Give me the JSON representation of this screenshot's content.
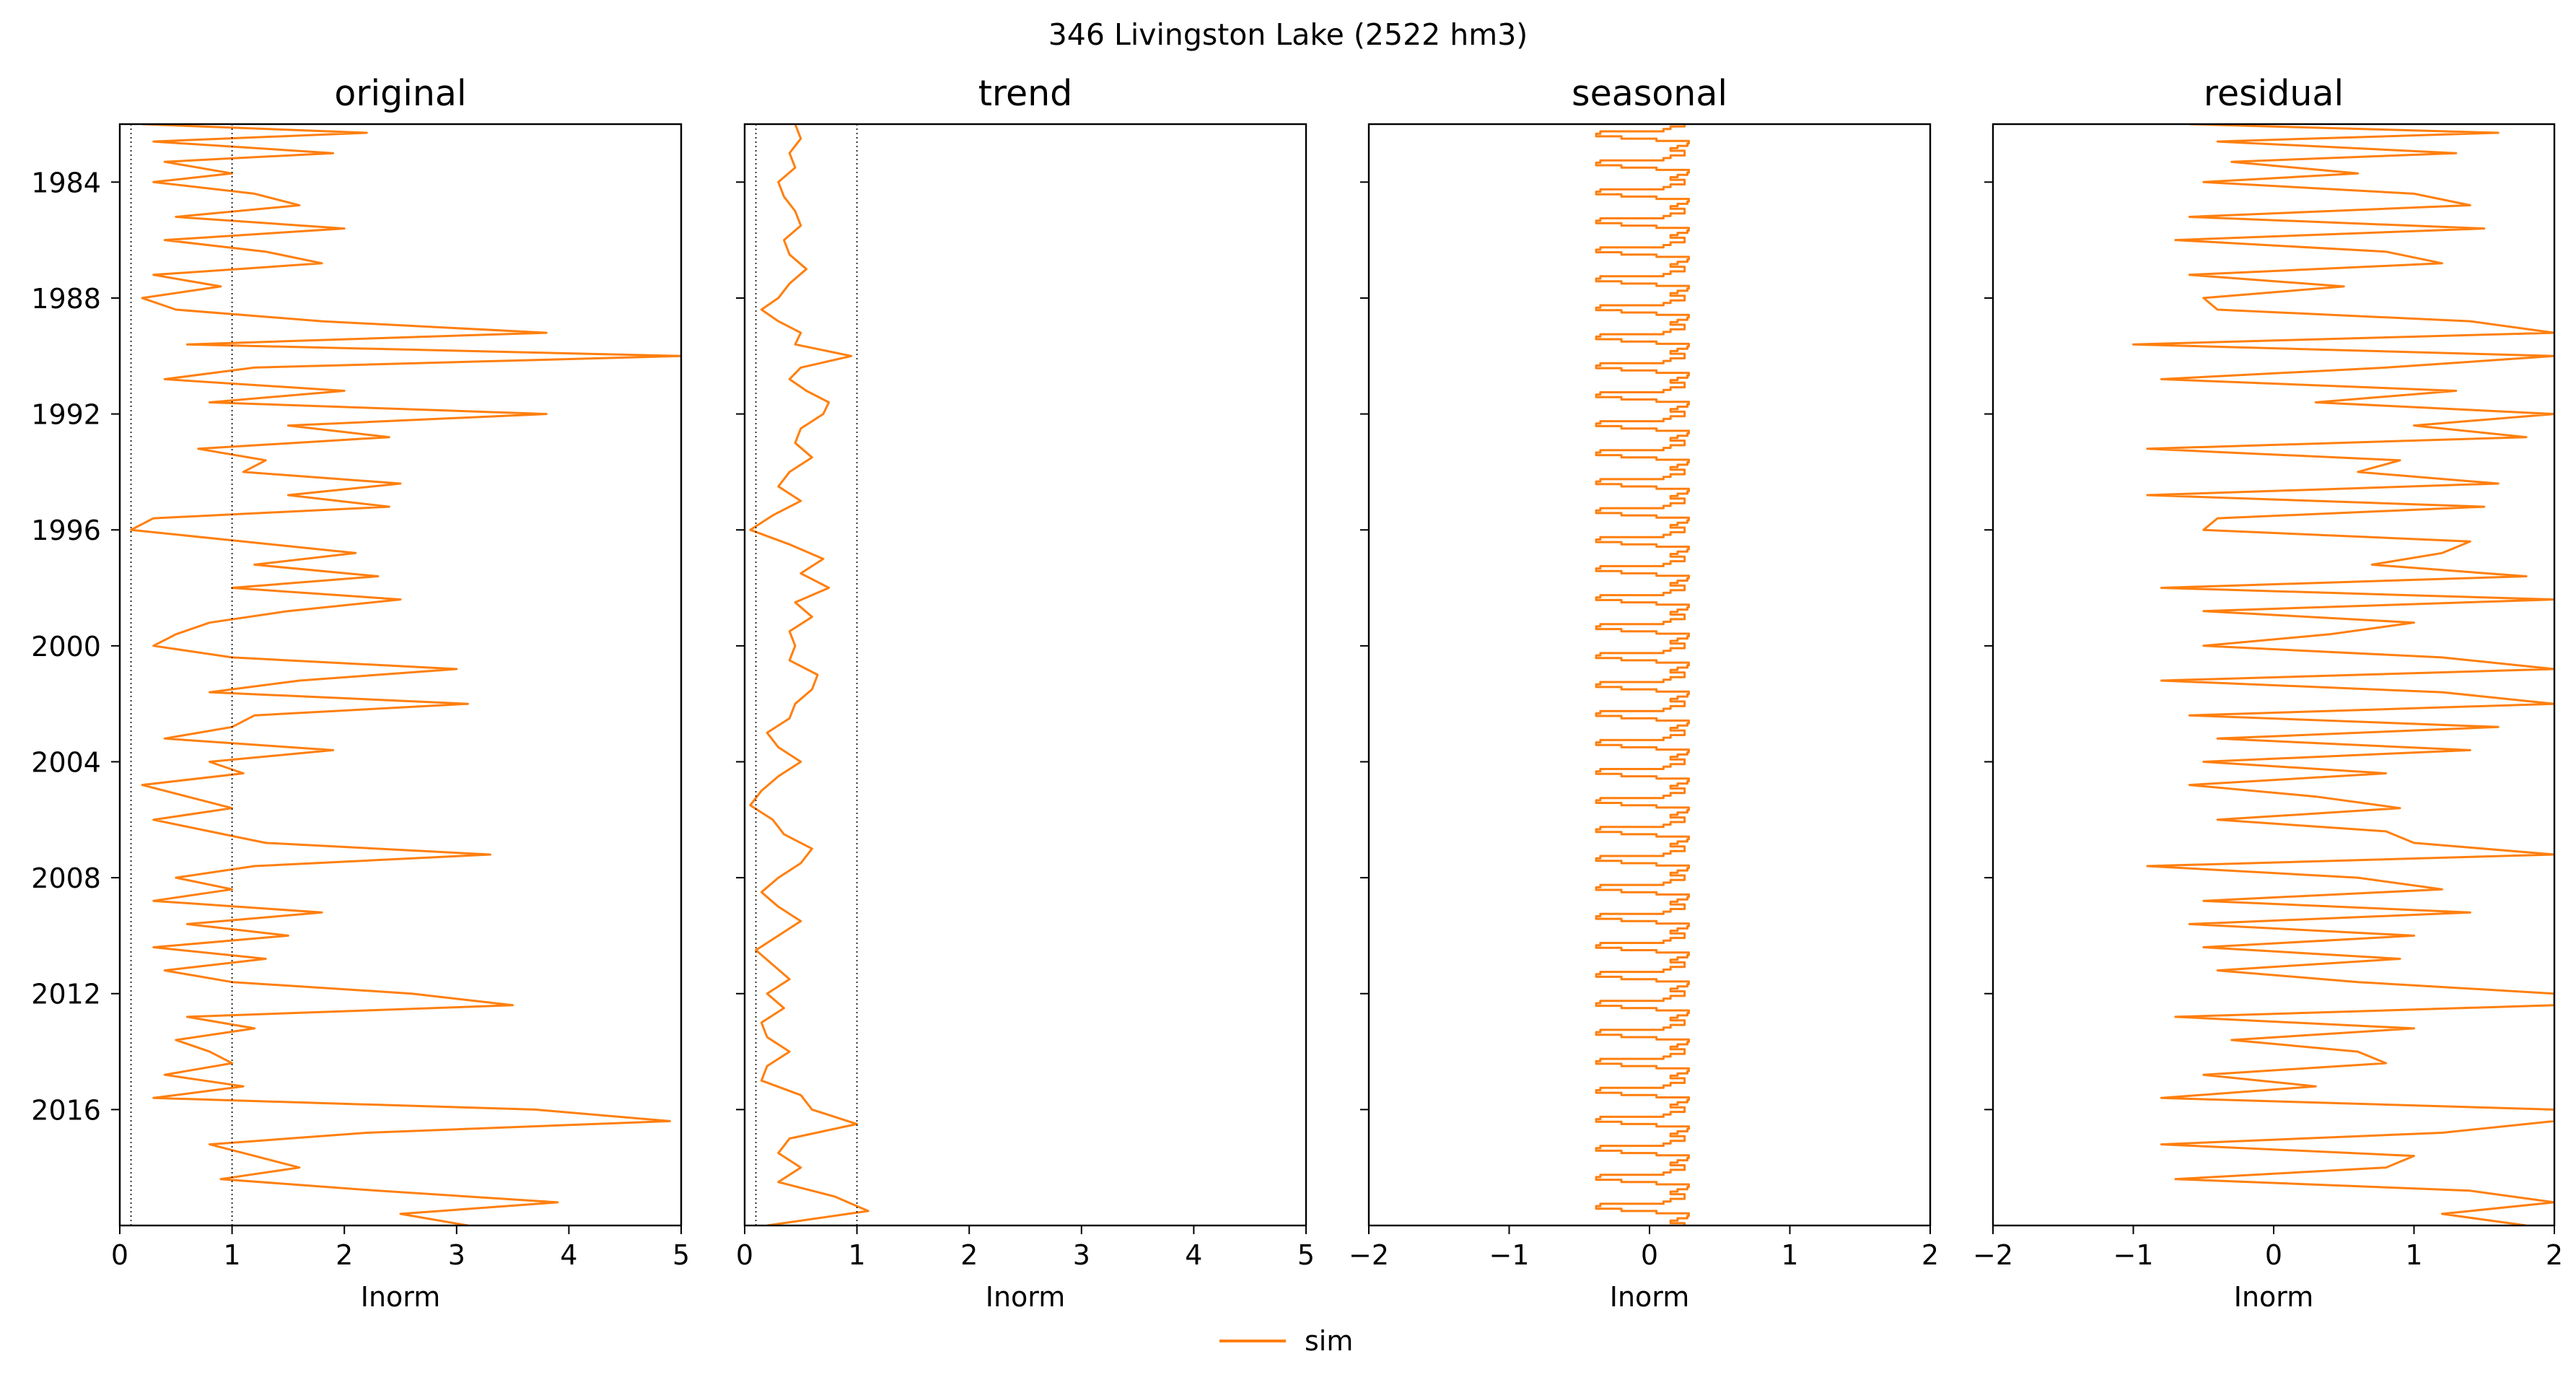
{
  "figure": {
    "suptitle": "346  Livingston Lake (2522 hm3)",
    "legend_label": "sim",
    "series_color": "#ff7f0e"
  },
  "chart_data": [
    {
      "type": "line",
      "title": "original",
      "xlabel": "Inorm",
      "ylabel": "",
      "xlim": [
        0,
        5
      ],
      "ylim": [
        1982.0,
        2020.0
      ],
      "y_inverted": true,
      "grid": false,
      "vlines": [
        0.0,
        0.1,
        1.0
      ],
      "xticks": [
        0,
        1,
        2,
        3,
        4,
        5
      ],
      "xtick_labels": [
        "0",
        "1",
        "2",
        "3",
        "4",
        "5"
      ],
      "yticks": [
        1984,
        1988,
        1992,
        1996,
        2000,
        2004,
        2008,
        2012,
        2016
      ],
      "ytick_labels": [
        "1984",
        "1988",
        "1992",
        "1996",
        "2000",
        "2004",
        "2008",
        "2012",
        "2016"
      ],
      "series": [
        {
          "name": "sim",
          "color": "#ff7f0e",
          "y": [
            1982.0,
            1982.3,
            1982.6,
            1983.0,
            1983.3,
            1983.7,
            1984.0,
            1984.4,
            1984.8,
            1985.2,
            1985.6,
            1986.0,
            1986.4,
            1986.8,
            1987.2,
            1987.6,
            1988.0,
            1988.4,
            1988.8,
            1989.2,
            1989.6,
            1990.0,
            1990.4,
            1990.8,
            1991.2,
            1991.6,
            1992.0,
            1992.4,
            1992.8,
            1993.2,
            1993.6,
            1994.0,
            1994.4,
            1994.8,
            1995.2,
            1995.6,
            1996.0,
            1996.4,
            1996.8,
            1997.2,
            1997.6,
            1998.0,
            1998.4,
            1998.8,
            1999.2,
            1999.6,
            2000.0,
            2000.4,
            2000.8,
            2001.2,
            2001.6,
            2002.0,
            2002.4,
            2002.8,
            2003.2,
            2003.6,
            2004.0,
            2004.4,
            2004.8,
            2005.2,
            2005.6,
            2006.0,
            2006.4,
            2006.8,
            2007.2,
            2007.6,
            2008.0,
            2008.4,
            2008.8,
            2009.2,
            2009.6,
            2010.0,
            2010.4,
            2010.8,
            2011.2,
            2011.6,
            2012.0,
            2012.4,
            2012.8,
            2013.2,
            2013.6,
            2014.0,
            2014.4,
            2014.8,
            2015.2,
            2015.6,
            2016.0,
            2016.4,
            2016.8,
            2017.2,
            2017.6,
            2018.0,
            2018.4,
            2018.8,
            2019.2,
            2019.6,
            2020.0
          ],
          "x": [
            0.2,
            2.2,
            0.3,
            1.9,
            0.4,
            1.0,
            0.3,
            1.2,
            1.6,
            0.5,
            2.0,
            0.4,
            1.3,
            1.8,
            0.3,
            0.9,
            0.2,
            0.5,
            1.8,
            3.8,
            0.6,
            5.0,
            1.2,
            0.4,
            2.0,
            0.8,
            3.8,
            1.5,
            2.4,
            0.7,
            1.3,
            1.1,
            2.5,
            1.5,
            2.4,
            0.3,
            0.1,
            1.1,
            2.1,
            1.2,
            2.3,
            1.0,
            2.5,
            1.5,
            0.8,
            0.5,
            0.3,
            1.0,
            3.0,
            1.6,
            0.8,
            3.1,
            1.2,
            1.0,
            0.4,
            1.9,
            0.8,
            1.1,
            0.2,
            0.6,
            1.0,
            0.3,
            0.8,
            1.3,
            3.3,
            1.2,
            0.5,
            1.0,
            0.3,
            1.8,
            0.6,
            1.5,
            0.3,
            1.3,
            0.4,
            1.0,
            2.6,
            3.5,
            0.6,
            1.2,
            0.5,
            0.8,
            1.0,
            0.4,
            1.1,
            0.3,
            3.7,
            4.9,
            2.2,
            0.8,
            1.2,
            1.6,
            0.9,
            2.3,
            3.9,
            2.5,
            3.1
          ]
        }
      ]
    },
    {
      "type": "line",
      "title": "trend",
      "xlabel": "Inorm",
      "ylabel": "",
      "xlim": [
        0,
        5
      ],
      "ylim": [
        1982.0,
        2020.0
      ],
      "y_inverted": true,
      "grid": false,
      "vlines": [
        0.0,
        0.1,
        1.0
      ],
      "xticks": [
        0,
        1,
        2,
        3,
        4,
        5
      ],
      "xtick_labels": [
        "0",
        "1",
        "2",
        "3",
        "4",
        "5"
      ],
      "yticks": [
        1984,
        1988,
        1992,
        1996,
        2000,
        2004,
        2008,
        2012,
        2016
      ],
      "ytick_labels": [],
      "series": [
        {
          "name": "sim",
          "color": "#ff7f0e",
          "y": [
            1982.0,
            1982.5,
            1983.0,
            1983.5,
            1984.0,
            1984.5,
            1985.0,
            1985.5,
            1986.0,
            1986.5,
            1987.0,
            1987.5,
            1988.0,
            1988.4,
            1988.8,
            1989.2,
            1989.6,
            1990.0,
            1990.4,
            1990.8,
            1991.2,
            1991.6,
            1992.0,
            1992.5,
            1993.0,
            1993.5,
            1994.0,
            1994.5,
            1995.0,
            1995.5,
            1996.0,
            1996.5,
            1997.0,
            1997.5,
            1998.0,
            1998.5,
            1999.0,
            1999.5,
            2000.0,
            2000.5,
            2001.0,
            2001.5,
            2002.0,
            2002.5,
            2003.0,
            2003.5,
            2004.0,
            2004.5,
            2005.0,
            2005.5,
            2006.0,
            2006.5,
            2007.0,
            2007.5,
            2008.0,
            2008.5,
            2009.0,
            2009.5,
            2010.0,
            2010.5,
            2011.0,
            2011.5,
            2012.0,
            2012.5,
            2013.0,
            2013.5,
            2014.0,
            2014.5,
            2015.0,
            2015.5,
            2016.0,
            2016.5,
            2017.0,
            2017.5,
            2018.0,
            2018.5,
            2019.0,
            2019.5,
            2020.0
          ],
          "x": [
            0.45,
            0.5,
            0.4,
            0.45,
            0.3,
            0.35,
            0.45,
            0.5,
            0.35,
            0.4,
            0.55,
            0.4,
            0.3,
            0.15,
            0.3,
            0.5,
            0.45,
            0.95,
            0.5,
            0.4,
            0.55,
            0.75,
            0.7,
            0.5,
            0.45,
            0.6,
            0.4,
            0.3,
            0.5,
            0.25,
            0.05,
            0.4,
            0.7,
            0.5,
            0.75,
            0.45,
            0.6,
            0.4,
            0.45,
            0.4,
            0.65,
            0.6,
            0.45,
            0.4,
            0.2,
            0.3,
            0.5,
            0.3,
            0.15,
            0.05,
            0.25,
            0.35,
            0.6,
            0.5,
            0.3,
            0.15,
            0.3,
            0.5,
            0.3,
            0.1,
            0.25,
            0.4,
            0.2,
            0.35,
            0.15,
            0.2,
            0.4,
            0.2,
            0.15,
            0.5,
            0.6,
            1.0,
            0.4,
            0.3,
            0.5,
            0.3,
            0.8,
            1.1,
            0.2
          ]
        }
      ]
    },
    {
      "type": "line",
      "title": "seasonal",
      "xlabel": "Inorm",
      "ylabel": "",
      "xlim": [
        -2,
        2
      ],
      "ylim": [
        1982.0,
        2020.0
      ],
      "y_inverted": true,
      "grid": false,
      "vlines": [],
      "xticks": [
        -2,
        -1,
        0,
        1,
        2
      ],
      "xtick_labels": [
        "−2",
        "−1",
        "0",
        "1",
        "2"
      ],
      "yticks": [
        1984,
        1988,
        1992,
        1996,
        2000,
        2004,
        2008,
        2012,
        2016
      ],
      "ytick_labels": [],
      "series": [
        {
          "name": "sim",
          "color": "#ff7f0e",
          "pattern": "annual",
          "year_start": 1982,
          "year_end": 2020,
          "cycle_y": [
            0.0,
            0.08,
            0.08,
            0.17,
            0.17,
            0.25,
            0.25,
            0.33,
            0.33,
            0.42,
            0.42,
            0.5,
            0.5,
            0.58,
            0.58,
            0.67,
            0.67,
            0.75,
            0.75,
            0.83,
            0.83,
            0.92,
            0.92,
            1.0
          ],
          "cycle_x": [
            0.25,
            0.25,
            0.15,
            0.15,
            0.1,
            0.1,
            -0.35,
            -0.35,
            -0.38,
            -0.38,
            -0.2,
            -0.2,
            0.05,
            0.05,
            0.28,
            0.28,
            0.27,
            0.27,
            0.2,
            0.2,
            0.15,
            0.15,
            0.25,
            0.25
          ]
        }
      ]
    },
    {
      "type": "line",
      "title": "residual",
      "xlabel": "Inorm",
      "ylabel": "",
      "xlim": [
        -2,
        2
      ],
      "ylim": [
        1982.0,
        2020.0
      ],
      "y_inverted": true,
      "grid": false,
      "vlines": [],
      "xticks": [
        -2,
        -1,
        0,
        1,
        2
      ],
      "xtick_labels": [
        "−2",
        "−1",
        "0",
        "1",
        "2"
      ],
      "yticks": [
        1984,
        1988,
        1992,
        1996,
        2000,
        2004,
        2008,
        2012,
        2016
      ],
      "ytick_labels": [],
      "series": [
        {
          "name": "sim",
          "color": "#ff7f0e",
          "y": [
            1982.0,
            1982.3,
            1982.6,
            1983.0,
            1983.3,
            1983.7,
            1984.0,
            1984.4,
            1984.8,
            1985.2,
            1985.6,
            1986.0,
            1986.4,
            1986.8,
            1987.2,
            1987.6,
            1988.0,
            1988.4,
            1988.8,
            1989.2,
            1989.6,
            1990.0,
            1990.4,
            1990.8,
            1991.2,
            1991.6,
            1992.0,
            1992.4,
            1992.8,
            1993.2,
            1993.6,
            1994.0,
            1994.4,
            1994.8,
            1995.2,
            1995.6,
            1996.0,
            1996.4,
            1996.8,
            1997.2,
            1997.6,
            1998.0,
            1998.4,
            1998.8,
            1999.2,
            1999.6,
            2000.0,
            2000.4,
            2000.8,
            2001.2,
            2001.6,
            2002.0,
            2002.4,
            2002.8,
            2003.2,
            2003.6,
            2004.0,
            2004.4,
            2004.8,
            2005.2,
            2005.6,
            2006.0,
            2006.4,
            2006.8,
            2007.2,
            2007.6,
            2008.0,
            2008.4,
            2008.8,
            2009.2,
            2009.6,
            2010.0,
            2010.4,
            2010.8,
            2011.2,
            2011.6,
            2012.0,
            2012.4,
            2012.8,
            2013.2,
            2013.6,
            2014.0,
            2014.4,
            2014.8,
            2015.2,
            2015.6,
            2016.0,
            2016.4,
            2016.8,
            2017.2,
            2017.6,
            2018.0,
            2018.4,
            2018.8,
            2019.2,
            2019.6,
            2020.0
          ],
          "x": [
            -0.6,
            1.6,
            -0.4,
            1.3,
            -0.3,
            0.6,
            -0.5,
            1.0,
            1.4,
            -0.6,
            1.5,
            -0.7,
            0.8,
            1.2,
            -0.6,
            0.5,
            -0.5,
            -0.4,
            1.4,
            2.0,
            -1.0,
            2.0,
            0.8,
            -0.8,
            1.3,
            0.3,
            2.0,
            1.0,
            1.8,
            -0.9,
            0.9,
            0.6,
            1.6,
            -0.9,
            1.5,
            -0.4,
            -0.5,
            1.4,
            1.2,
            0.7,
            1.8,
            -0.8,
            2.0,
            -0.5,
            1.0,
            0.4,
            -0.5,
            1.2,
            2.0,
            -0.8,
            1.2,
            2.0,
            -0.6,
            1.6,
            -0.4,
            1.4,
            -0.5,
            0.8,
            -0.6,
            0.3,
            0.9,
            -0.4,
            0.8,
            1.0,
            2.0,
            -0.9,
            0.6,
            1.2,
            -0.5,
            1.4,
            -0.6,
            1.0,
            -0.5,
            0.9,
            -0.4,
            0.6,
            2.0,
            2.0,
            -0.7,
            1.0,
            -0.3,
            0.6,
            0.8,
            -0.5,
            0.3,
            -0.8,
            2.0,
            2.0,
            1.2,
            -0.8,
            1.0,
            0.8,
            -0.7,
            1.4,
            2.0,
            1.2,
            1.8
          ]
        }
      ]
    }
  ]
}
